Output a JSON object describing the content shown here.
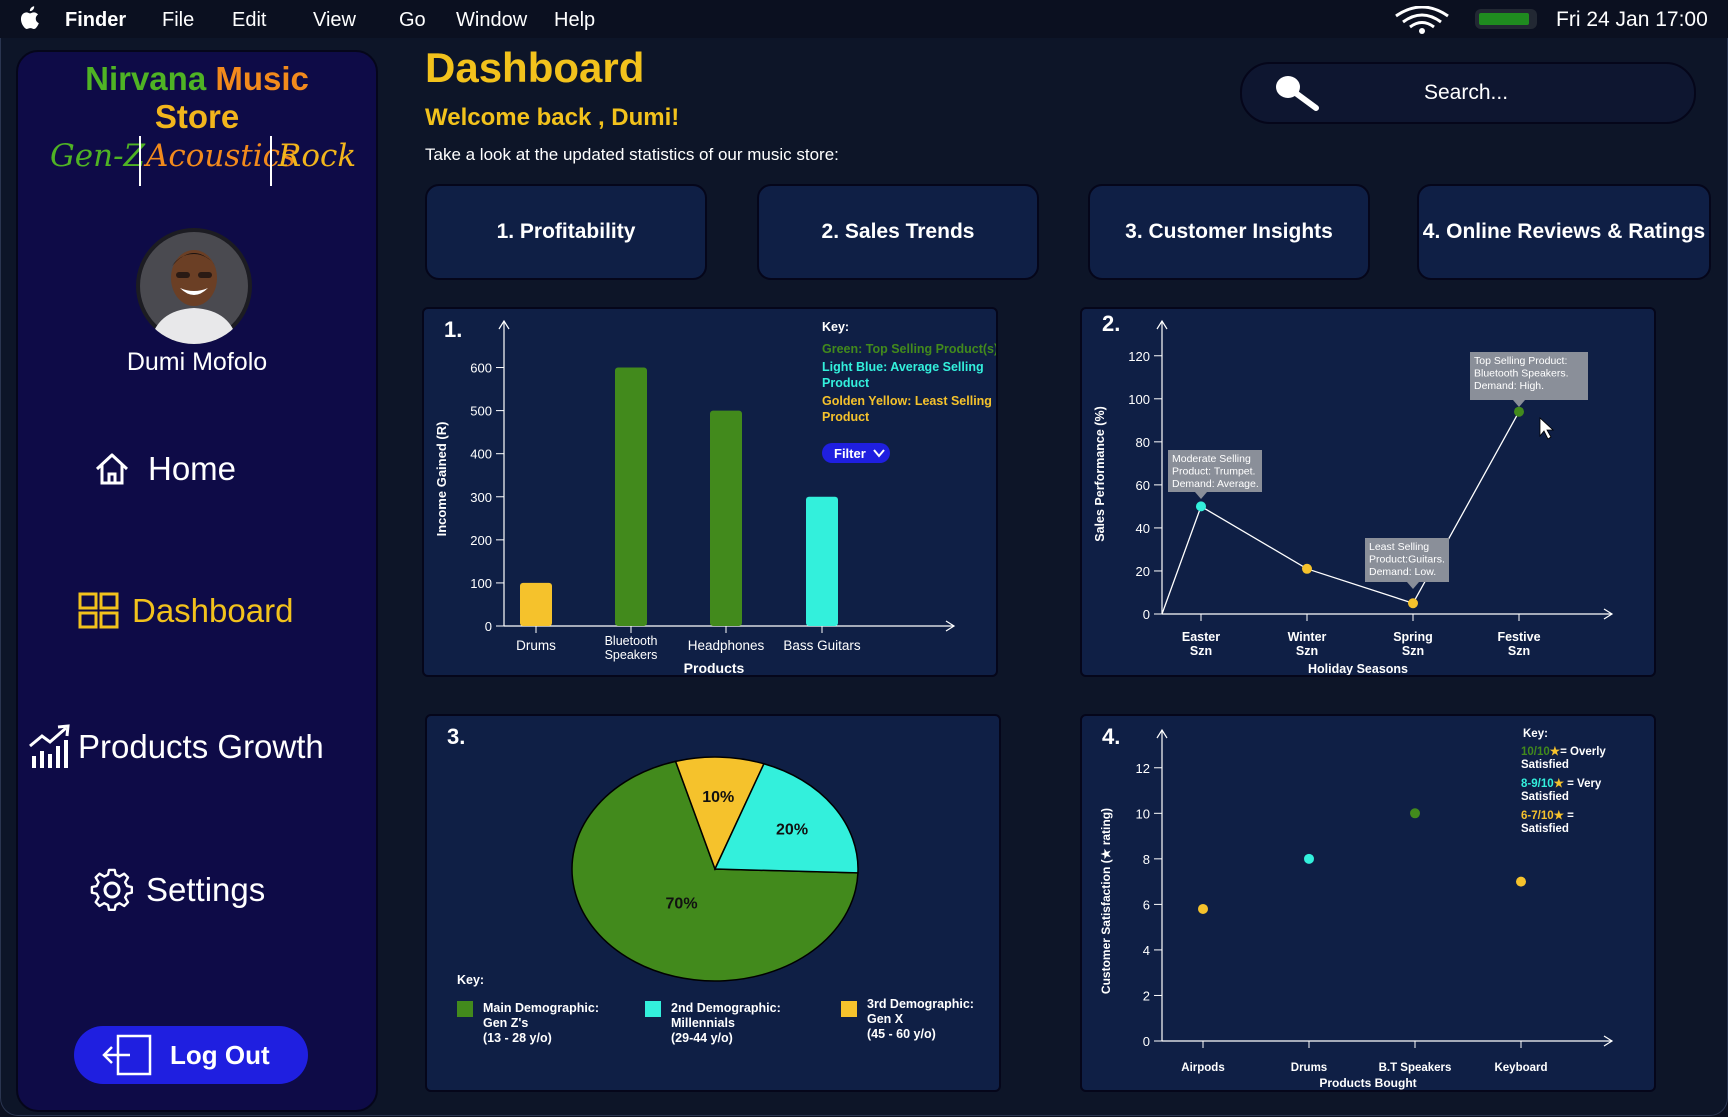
{
  "menubar": {
    "app": "Finder",
    "items": [
      "File",
      "Edit",
      "View",
      "Go",
      "Window",
      "Help"
    ],
    "clock": "Fri 24 Jan  17:00"
  },
  "sidebar": {
    "logo_word1": "Nirvana",
    "logo_word2": "Music",
    "logo_line2": "Store",
    "genres": [
      "Gen-Z",
      "Acoustics",
      "Rock"
    ],
    "user_name": "Dumi Mofolo",
    "nav": {
      "home": "Home",
      "dashboard": "Dashboard",
      "growth": "Products Growth",
      "settings": "Settings"
    },
    "logout": "Log Out"
  },
  "header": {
    "title": "Dashboard",
    "welcome": "Welcome back , Dumi!",
    "subtitle": "Take a look at the updated statistics of our music store:",
    "search_placeholder": "Search..."
  },
  "tabs": [
    "1. Profitability",
    "2. Sales Trends",
    "3. Customer Insights",
    "4. Online Reviews & Ratings"
  ],
  "colors": {
    "green": "#428a1c",
    "cyan": "#33f0dc",
    "gold": "#f5c22c",
    "accent_blue": "#1f1fe0"
  },
  "chart_data": [
    {
      "number": "1.",
      "type": "bar",
      "categories": [
        "Drums",
        "Bluetooth Speakers",
        "Headphones",
        "Bass Guitars"
      ],
      "values": [
        100,
        600,
        500,
        300
      ],
      "bar_colors": [
        "gold",
        "green",
        "green",
        "cyan"
      ],
      "xlabel": "Products",
      "ylabel": "Income Gained (R)",
      "yticks": [
        0,
        100,
        200,
        300,
        400,
        500,
        600
      ],
      "ylim": [
        0,
        650
      ],
      "key_title": "Key:",
      "key": [
        {
          "text": "Green: Top Selling Product(s)",
          "color": "green"
        },
        {
          "text": "Light Blue: Average Selling Product",
          "color": "cyan"
        },
        {
          "text": "Golden Yellow: Least Selling Product",
          "color": "gold"
        }
      ],
      "filter_label": "Filter"
    },
    {
      "number": "2.",
      "type": "line",
      "categories": [
        "Easter Szn",
        "Winter Szn",
        "Spring Szn",
        "Festive Szn"
      ],
      "values": [
        50,
        21,
        5,
        94
      ],
      "point_colors": [
        "cyan",
        "gold",
        "gold",
        "green"
      ],
      "xlabel": "Holiday Seasons",
      "ylabel": "Sales Performance (%)",
      "yticks": [
        0,
        20,
        40,
        60,
        80,
        100,
        120
      ],
      "ylim": [
        0,
        125
      ],
      "annotations": [
        {
          "lines": [
            "Moderate Selling",
            "Product: Trumpet.",
            "Demand: Average."
          ],
          "point": 0
        },
        {
          "lines": [
            "Least Selling",
            "Product:Guitars.",
            "Demand: Low."
          ],
          "point": 2
        },
        {
          "lines": [
            "Top Selling Product:",
            "Bluetooth Speakers.",
            "Demand: High."
          ],
          "point": 3
        }
      ]
    },
    {
      "number": "3.",
      "type": "pie",
      "slices": [
        {
          "label": "70%",
          "value": 70,
          "color": "green"
        },
        {
          "label": "10%",
          "value": 10,
          "color": "gold"
        },
        {
          "label": "20%",
          "value": 20,
          "color": "cyan"
        }
      ],
      "key_title": "Key:",
      "key": [
        {
          "lines": [
            "Main Demographic:",
            "Gen Z's",
            "(13 - 28 y/o)"
          ],
          "color": "green"
        },
        {
          "lines": [
            "2nd Demographic:",
            "Millennials",
            "(29-44 y/o)"
          ],
          "color": "cyan"
        },
        {
          "lines": [
            "3rd Demographic:",
            "Gen X",
            "(45 - 60 y/o)"
          ],
          "color": "gold"
        }
      ]
    },
    {
      "number": "4.",
      "type": "scatter",
      "categories": [
        "Airpods",
        "Drums",
        "B.T Speakers",
        "Keyboard"
      ],
      "values": [
        5.8,
        8,
        10,
        7
      ],
      "point_colors": [
        "gold",
        "cyan",
        "green",
        "gold"
      ],
      "xlabel": "Products Bought",
      "ylabel": "Customer Satisfaction (★ rating)",
      "yticks": [
        0,
        2,
        4,
        6,
        8,
        10,
        12
      ],
      "ylim": [
        0,
        13
      ],
      "key_title": "Key:",
      "key": [
        {
          "rating": "10/10",
          "rest": "= Overly",
          "line2": "Satisfied",
          "color": "green"
        },
        {
          "rating": "8-9/10",
          "rest": " = Very",
          "line2": "Satisfied",
          "color": "cyan"
        },
        {
          "rating": "6-7/10",
          "rest": " =",
          "line2": "Satisfied",
          "color": "gold"
        }
      ]
    }
  ]
}
